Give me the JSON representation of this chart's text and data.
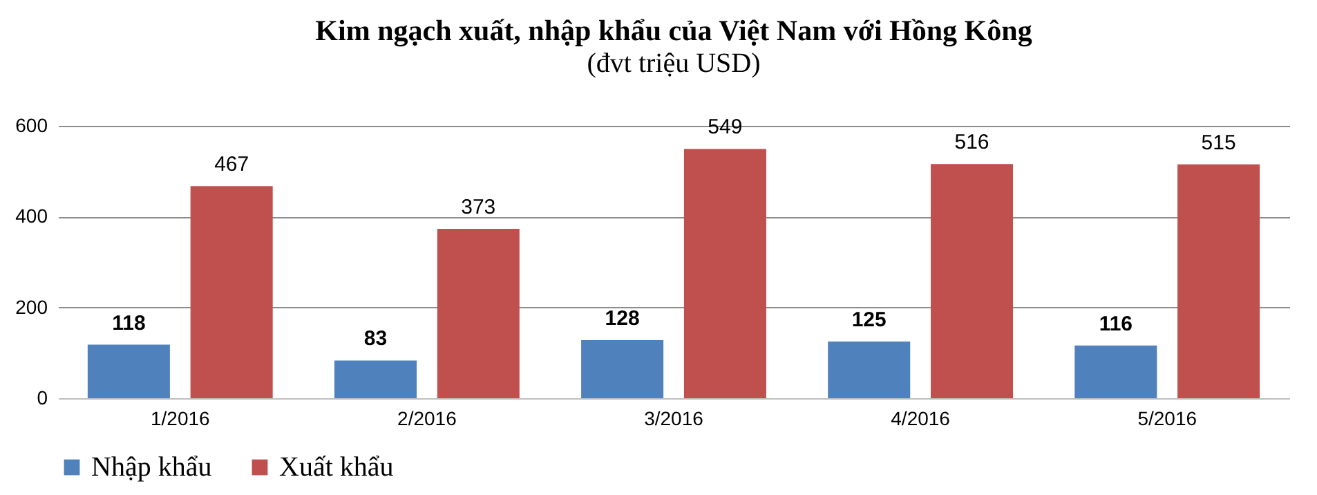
{
  "chart_data": {
    "type": "bar",
    "title": "Kim ngạch xuất, nhập khẩu của Việt Nam với Hồng Kông",
    "subtitle": "(đvt triệu USD)",
    "categories": [
      "1/2016",
      "2/2016",
      "3/2016",
      "4/2016",
      "5/2016"
    ],
    "series": [
      {
        "name": "Nhập khẩu",
        "color": "#4f81bd",
        "values": [
          118,
          83,
          128,
          125,
          116
        ]
      },
      {
        "name": "Xuất khẩu",
        "color": "#c0504d",
        "values": [
          467,
          373,
          549,
          516,
          515
        ]
      }
    ],
    "ylim": [
      0,
      600
    ],
    "yticks": [
      0,
      200,
      400,
      600
    ],
    "grid": "y",
    "legend": "bottom",
    "data_labels": true
  }
}
